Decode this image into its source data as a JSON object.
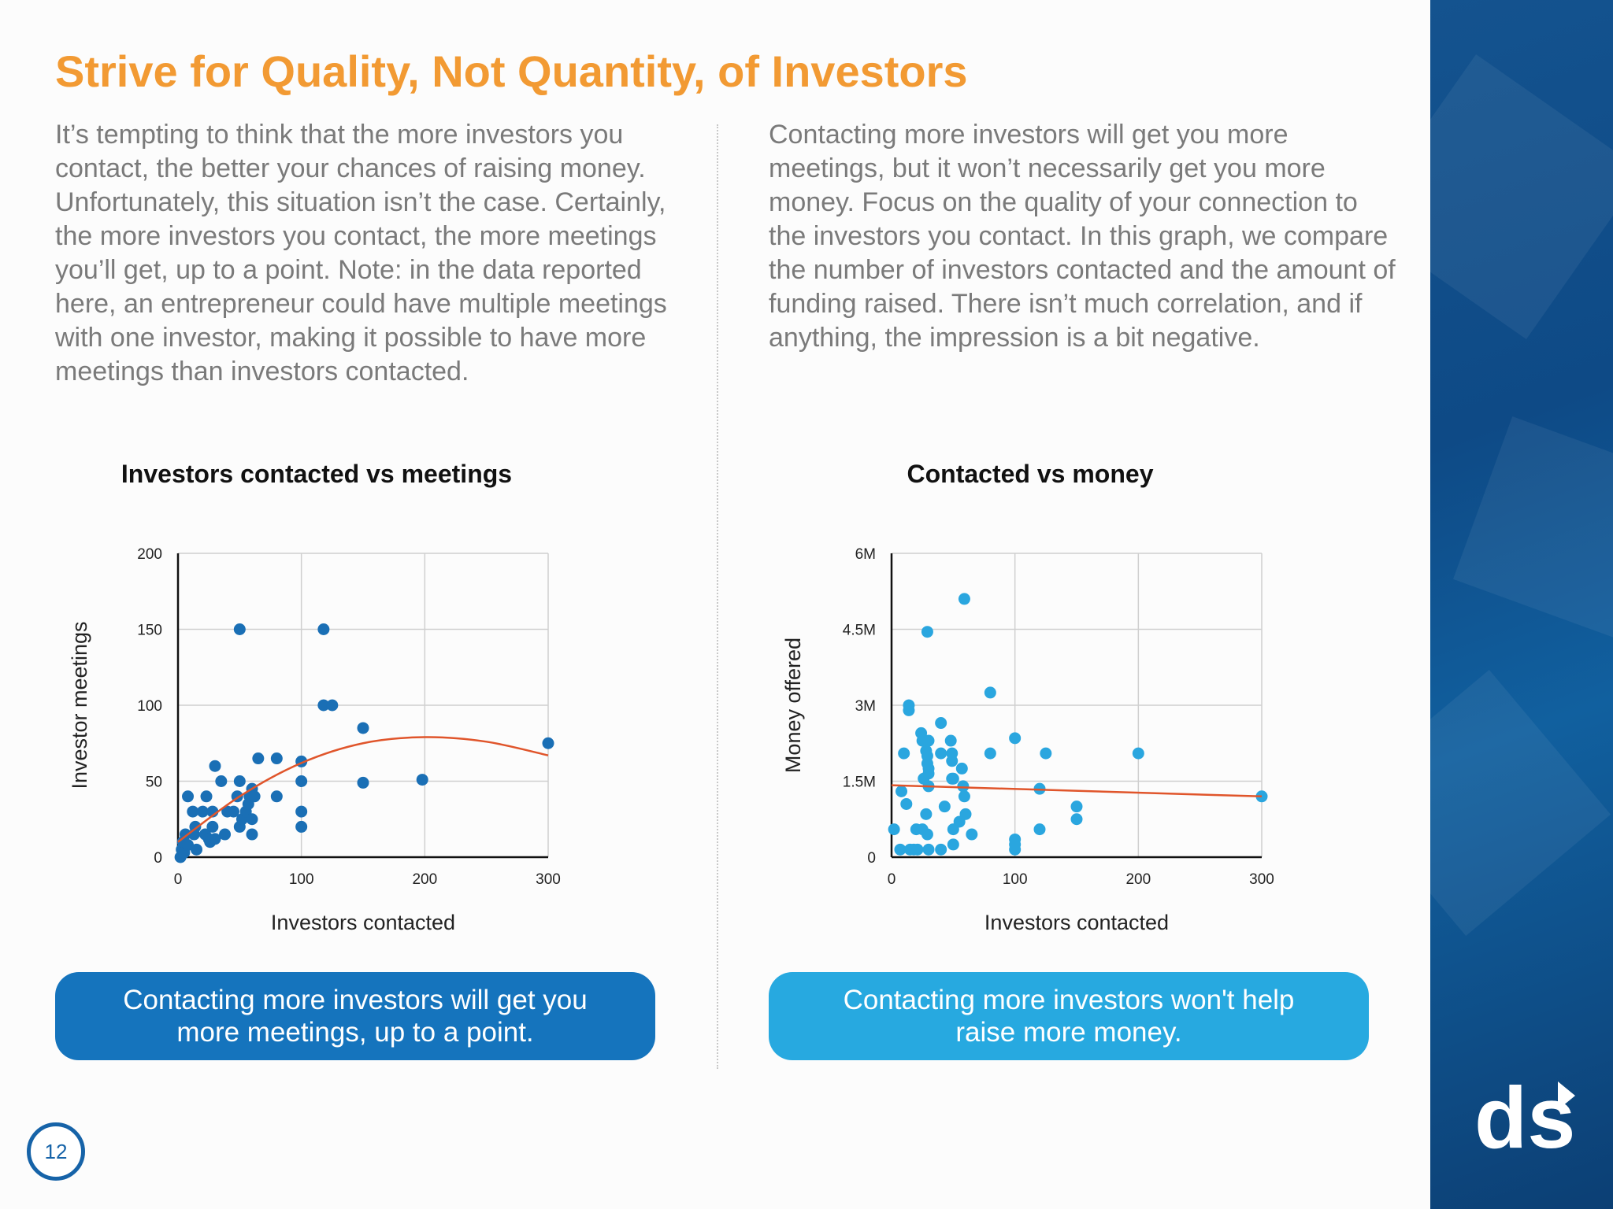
{
  "page": {
    "title": "Strive for Quality, Not Quantity, of Investors",
    "left_paragraph": "It’s tempting to think that the more investors you contact, the better your chances of raising money. Unfortunately, this situation isn’t the case. Certainly, the more investors you contact, the more meetings you’ll get, up to a point. Note: in the data reported here, an entrepreneur could have multiple meetings with one investor, making it possible to have more meetings than investors contacted.",
    "right_paragraph": "Contacting more investors will get you more meetings, but it won’t necessarily get you more money. Focus on the quality of your connection to the investors you contact. In this graph, we compare the number of investors contacted and the amount of funding raised. There isn’t much correlation, and if anything, the impression is a bit negative.",
    "left_callout": "Contacting more investors will get you more meetings, up to a point.",
    "right_callout": "Contacting more investors won't help raise more money.",
    "page_number": "12",
    "logo": "ds",
    "colors": {
      "title_orange": "#f29a33",
      "text_gray": "#7a7a7a",
      "dark_blue": "#1574bd",
      "light_blue": "#27a9e0",
      "trend_red": "#e0552b",
      "sidebar_blue": "#14538f"
    }
  },
  "chart_data": [
    {
      "type": "scatter",
      "title": "Investors contacted vs meetings",
      "xlabel": "Investors contacted",
      "ylabel": "Investor meetings",
      "xlim": [
        0,
        300
      ],
      "ylim": [
        0,
        200
      ],
      "xticks": [
        "0",
        "100",
        "200",
        "300"
      ],
      "yticks": [
        "0",
        "50",
        "100",
        "150",
        "200"
      ],
      "grid": true,
      "point_color": "#1a6fb5",
      "trendline": {
        "type": "polynomial",
        "x": [
          0,
          50,
          100,
          150,
          200,
          250,
          300
        ],
        "y": [
          10,
          40,
          62,
          75,
          79,
          76,
          67
        ],
        "color": "#e0552b"
      },
      "points": [
        [
          2,
          0
        ],
        [
          3,
          5
        ],
        [
          4,
          10
        ],
        [
          5,
          3
        ],
        [
          6,
          15
        ],
        [
          8,
          8
        ],
        [
          8,
          40
        ],
        [
          12,
          30
        ],
        [
          13,
          15
        ],
        [
          14,
          20
        ],
        [
          15,
          5
        ],
        [
          20,
          30
        ],
        [
          22,
          15
        ],
        [
          23,
          40
        ],
        [
          25,
          12
        ],
        [
          26,
          10
        ],
        [
          28,
          20
        ],
        [
          28,
          30
        ],
        [
          30,
          12
        ],
        [
          30,
          60
        ],
        [
          35,
          50
        ],
        [
          38,
          15
        ],
        [
          40,
          30
        ],
        [
          45,
          30
        ],
        [
          48,
          40
        ],
        [
          50,
          50
        ],
        [
          50,
          150
        ],
        [
          50,
          20
        ],
        [
          52,
          25
        ],
        [
          55,
          30
        ],
        [
          57,
          35
        ],
        [
          58,
          40
        ],
        [
          60,
          45
        ],
        [
          60,
          25
        ],
        [
          60,
          15
        ],
        [
          62,
          40
        ],
        [
          65,
          65
        ],
        [
          80,
          65
        ],
        [
          80,
          40
        ],
        [
          100,
          50
        ],
        [
          100,
          63
        ],
        [
          100,
          30
        ],
        [
          100,
          20
        ],
        [
          118,
          150
        ],
        [
          118,
          100
        ],
        [
          125,
          100
        ],
        [
          150,
          85
        ],
        [
          150,
          49
        ],
        [
          198,
          51
        ],
        [
          300,
          75
        ]
      ]
    },
    {
      "type": "scatter",
      "title": "Contacted vs money",
      "xlabel": "Investors contacted",
      "ylabel": "Money offered",
      "xlim": [
        0,
        300
      ],
      "ylim": [
        0,
        6000000
      ],
      "xticks": [
        "0",
        "100",
        "200",
        "300"
      ],
      "yticks": [
        "0",
        "1.5M",
        "3M",
        "4.5M",
        "6M"
      ],
      "grid": true,
      "point_color": "#2aa6df",
      "trendline": {
        "type": "linear",
        "x": [
          0,
          300
        ],
        "y": [
          1420000,
          1200000
        ],
        "color": "#e0552b"
      },
      "points": [
        [
          2,
          550000
        ],
        [
          7,
          150000
        ],
        [
          8,
          1300000
        ],
        [
          10,
          2050000
        ],
        [
          12,
          1050000
        ],
        [
          14,
          3000000
        ],
        [
          14,
          2900000
        ],
        [
          15,
          150000
        ],
        [
          18,
          150000
        ],
        [
          20,
          550000
        ],
        [
          21,
          150000
        ],
        [
          24,
          2450000
        ],
        [
          25,
          2300000
        ],
        [
          25,
          550000
        ],
        [
          26,
          1550000
        ],
        [
          28,
          2100000
        ],
        [
          28,
          850000
        ],
        [
          29,
          2000000
        ],
        [
          29,
          1850000
        ],
        [
          29,
          4450000
        ],
        [
          29,
          450000
        ],
        [
          30,
          150000
        ],
        [
          30,
          1400000
        ],
        [
          30,
          1650000
        ],
        [
          30,
          1750000
        ],
        [
          30,
          2300000
        ],
        [
          40,
          2650000
        ],
        [
          40,
          2050000
        ],
        [
          40,
          150000
        ],
        [
          43,
          1000000
        ],
        [
          48,
          2300000
        ],
        [
          49,
          2050000
        ],
        [
          49,
          1900000
        ],
        [
          49,
          1550000
        ],
        [
          50,
          250000
        ],
        [
          50,
          1550000
        ],
        [
          50,
          550000
        ],
        [
          55,
          700000
        ],
        [
          57,
          1750000
        ],
        [
          58,
          1400000
        ],
        [
          59,
          5100000
        ],
        [
          59,
          1200000
        ],
        [
          60,
          850000
        ],
        [
          65,
          450000
        ],
        [
          80,
          3250000
        ],
        [
          80,
          2050000
        ],
        [
          100,
          2350000
        ],
        [
          100,
          350000
        ],
        [
          100,
          250000
        ],
        [
          100,
          150000
        ],
        [
          120,
          1350000
        ],
        [
          120,
          550000
        ],
        [
          125,
          2050000
        ],
        [
          150,
          1000000
        ],
        [
          150,
          750000
        ],
        [
          200,
          2050000
        ],
        [
          300,
          1200000
        ]
      ]
    }
  ]
}
